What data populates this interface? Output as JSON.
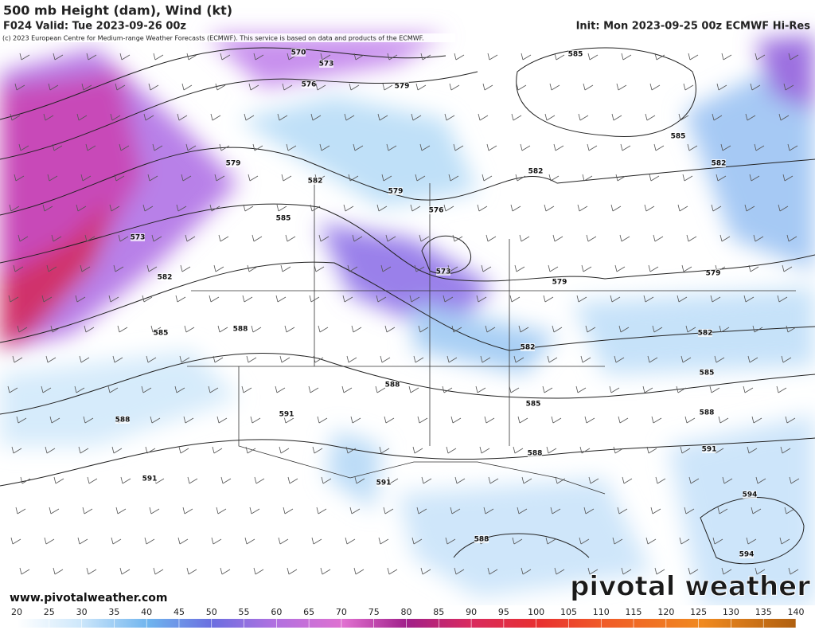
{
  "header": {
    "title": "500 mb Height (dam), Wind (kt)",
    "valid": "F024 Valid: Tue 2023-09-26 00z",
    "init": "Init: Mon 2023-09-25 00z ECMWF Hi-Res",
    "copyright": "(c) 2023 European Centre for Medium-range Weather Forecasts (ECMWF). This service is based on data and products of the ECMWF."
  },
  "contour_labels": [
    "570",
    "573",
    "576",
    "579",
    "585",
    "585",
    "582",
    "582",
    "579",
    "582",
    "579",
    "576",
    "585",
    "573",
    "582",
    "573",
    "579",
    "579",
    "585",
    "588",
    "582",
    "582",
    "585",
    "588",
    "585",
    "588",
    "591",
    "588",
    "591",
    "588",
    "591",
    "591",
    "594",
    "588",
    "594"
  ],
  "footer": {
    "website": "www.pivotalweather.com",
    "logo": "pivotal weather"
  },
  "colorbar": {
    "range": [
      20,
      140
    ],
    "ticks": [
      20,
      25,
      30,
      35,
      40,
      45,
      50,
      55,
      60,
      65,
      70,
      75,
      80,
      85,
      90,
      95,
      100,
      105,
      110,
      115,
      120,
      125,
      130,
      135,
      140
    ]
  }
}
